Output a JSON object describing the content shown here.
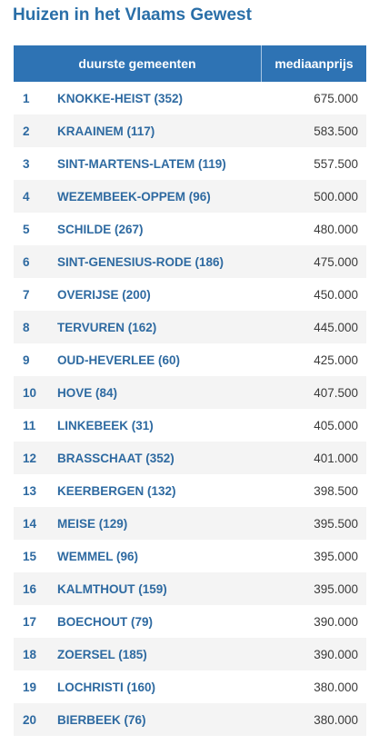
{
  "title": "Huizen in het Vlaams Gewest",
  "table": {
    "headers": {
      "name": "duurste gemeenten",
      "price": "mediaanprijs"
    },
    "rows": [
      {
        "rank": "1",
        "name": "KNOKKE-HEIST (352)",
        "price": "675.000"
      },
      {
        "rank": "2",
        "name": "KRAAINEM (117)",
        "price": "583.500"
      },
      {
        "rank": "3",
        "name": "SINT-MARTENS-LATEM (119)",
        "price": "557.500"
      },
      {
        "rank": "4",
        "name": "WEZEMBEEK-OPPEM (96)",
        "price": "500.000"
      },
      {
        "rank": "5",
        "name": "SCHILDE (267)",
        "price": "480.000"
      },
      {
        "rank": "6",
        "name": "SINT-GENESIUS-RODE (186)",
        "price": "475.000"
      },
      {
        "rank": "7",
        "name": "OVERIJSE (200)",
        "price": "450.000"
      },
      {
        "rank": "8",
        "name": "TERVUREN (162)",
        "price": "445.000"
      },
      {
        "rank": "9",
        "name": "OUD-HEVERLEE (60)",
        "price": "425.000"
      },
      {
        "rank": "10",
        "name": "HOVE (84)",
        "price": "407.500"
      },
      {
        "rank": "11",
        "name": "LINKEBEEK (31)",
        "price": "405.000"
      },
      {
        "rank": "12",
        "name": "BRASSCHAAT (352)",
        "price": "401.000"
      },
      {
        "rank": "13",
        "name": "KEERBERGEN (132)",
        "price": "398.500"
      },
      {
        "rank": "14",
        "name": "MEISE (129)",
        "price": "395.500"
      },
      {
        "rank": "15",
        "name": "WEMMEL (96)",
        "price": "395.000"
      },
      {
        "rank": "16",
        "name": "KALMTHOUT (159)",
        "price": "395.000"
      },
      {
        "rank": "17",
        "name": "BOECHOUT (79)",
        "price": "390.000"
      },
      {
        "rank": "18",
        "name": "ZOERSEL (185)",
        "price": "390.000"
      },
      {
        "rank": "19",
        "name": "LOCHRISTI (160)",
        "price": "380.000"
      },
      {
        "rank": "20",
        "name": "BIERBEEK (76)",
        "price": "380.000"
      }
    ]
  },
  "colors": {
    "title": "#2a6fa8",
    "header_bg": "#2e73b4",
    "row_text": "#2e6aa1",
    "alt_row_bg": "#f4f4f4"
  }
}
